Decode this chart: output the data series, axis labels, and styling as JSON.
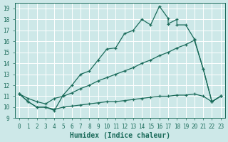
{
  "xlabel": "Humidex (Indice chaleur)",
  "bg_color": "#cde8e8",
  "grid_color": "#ffffff",
  "line_color": "#1a6b5a",
  "xlim": [
    -0.5,
    23.5
  ],
  "ylim": [
    9,
    19.5
  ],
  "xticks": [
    0,
    1,
    2,
    3,
    4,
    5,
    6,
    7,
    8,
    9,
    10,
    11,
    12,
    13,
    14,
    15,
    16,
    17,
    18,
    19,
    20,
    21,
    22,
    23
  ],
  "yticks": [
    9,
    10,
    11,
    12,
    13,
    14,
    15,
    16,
    17,
    18,
    19
  ],
  "line1_x": [
    0,
    1,
    2,
    3,
    4,
    5,
    6,
    7,
    8,
    9,
    10,
    11,
    12,
    13,
    14,
    15,
    16,
    17,
    17,
    18,
    18,
    19,
    20,
    21,
    22,
    23
  ],
  "line1_y": [
    11.2,
    10.5,
    10.0,
    10.0,
    9.7,
    11.1,
    12.0,
    13.0,
    13.3,
    14.3,
    15.3,
    15.4,
    16.7,
    17.0,
    18.0,
    17.5,
    19.2,
    18.1,
    17.6,
    18.0,
    17.5,
    17.5,
    16.2,
    13.5,
    10.5,
    11.0
  ],
  "line2_x": [
    0,
    1,
    2,
    3,
    4,
    5,
    6,
    7,
    8,
    9,
    10,
    11,
    12,
    13,
    14,
    15,
    16,
    17,
    18,
    19,
    20,
    21,
    22,
    23
  ],
  "line2_y": [
    11.2,
    10.8,
    10.5,
    10.3,
    10.8,
    11.0,
    11.3,
    11.7,
    12.0,
    12.4,
    12.7,
    13.0,
    13.3,
    13.6,
    14.0,
    14.3,
    14.7,
    15.0,
    15.4,
    15.7,
    16.1,
    13.5,
    10.5,
    11.0
  ],
  "line3_x": [
    0,
    1,
    2,
    3,
    4,
    5,
    6,
    7,
    8,
    9,
    10,
    11,
    12,
    13,
    14,
    15,
    16,
    17,
    18,
    19,
    20,
    21,
    22,
    23
  ],
  "line3_y": [
    11.2,
    10.5,
    10.0,
    10.0,
    9.8,
    10.0,
    10.1,
    10.2,
    10.3,
    10.4,
    10.5,
    10.5,
    10.6,
    10.7,
    10.8,
    10.9,
    11.0,
    11.0,
    11.1,
    11.1,
    11.2,
    11.0,
    10.5,
    11.0
  ]
}
